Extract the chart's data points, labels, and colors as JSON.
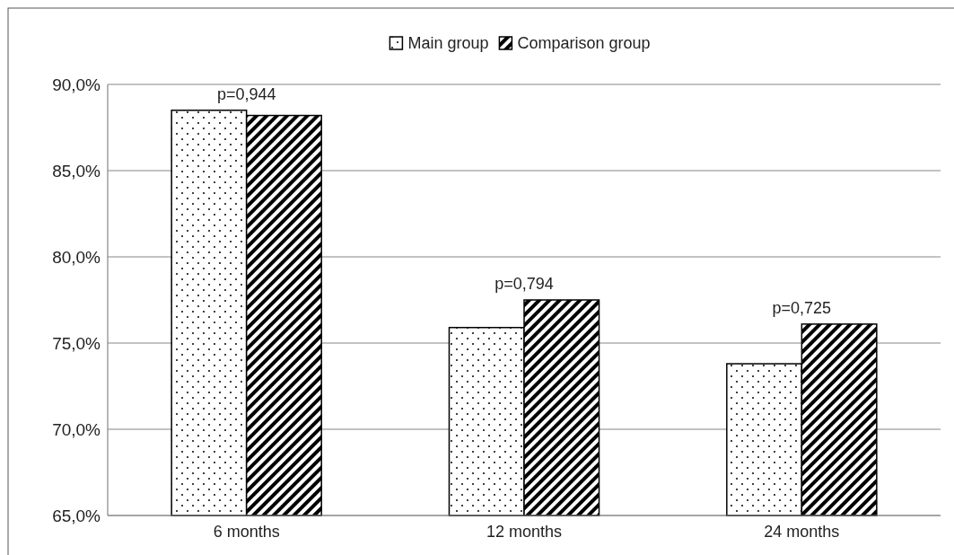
{
  "chart_data": {
    "type": "bar",
    "categories": [
      "6 months",
      "12 months",
      "24 months"
    ],
    "series": [
      {
        "name": "Main group",
        "color": "#000000",
        "values": [
          88.5,
          75.9,
          73.8
        ]
      },
      {
        "name": "Comparison group",
        "color": "#000000",
        "values": [
          88.2,
          77.5,
          76.1
        ]
      }
    ],
    "ylim": [
      65,
      90
    ],
    "yticks": [
      {
        "value": 65,
        "label": "65,0%"
      },
      {
        "value": 70,
        "label": "70,0%"
      },
      {
        "value": 75,
        "label": "75,0%"
      },
      {
        "value": 80,
        "label": "80,0%"
      },
      {
        "value": 85,
        "label": "85,0%"
      },
      {
        "value": 90,
        "label": "90,0%"
      }
    ],
    "grid": "y",
    "legend": "top",
    "annotations": [
      {
        "text": "p=0,944",
        "x": "6 months",
        "y": 88.5
      },
      {
        "text": "p=0,794",
        "x": "12 months",
        "y": 77.5
      },
      {
        "text": "p=0,725",
        "x": "24 months",
        "y": 76.1
      }
    ]
  }
}
